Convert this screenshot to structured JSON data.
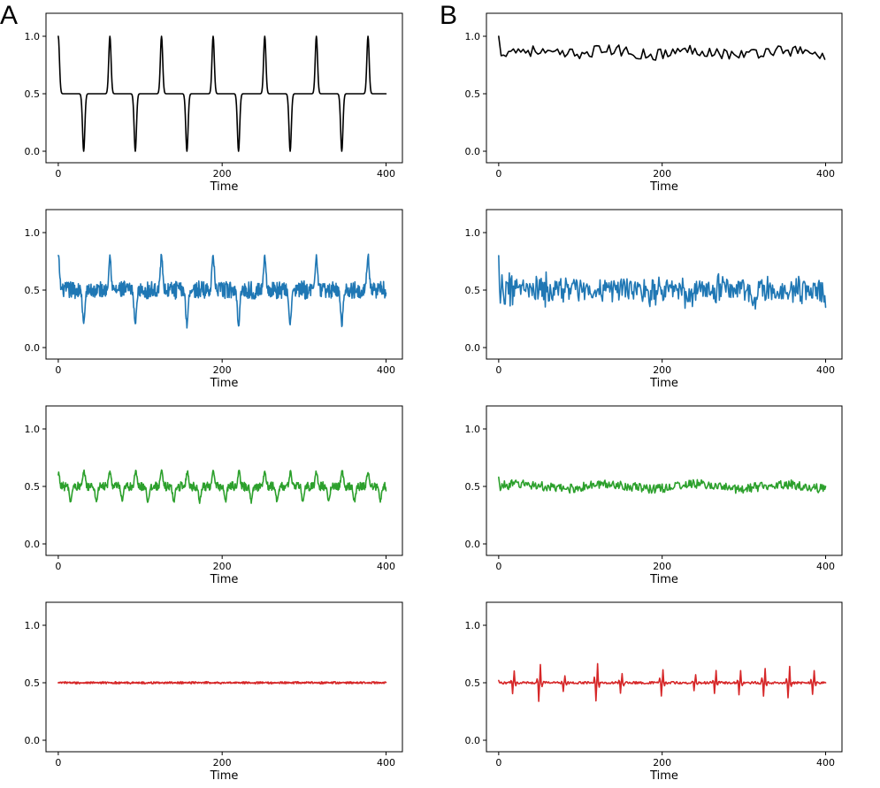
{
  "panels": [
    {
      "letter": "A"
    },
    {
      "letter": "B"
    }
  ],
  "chart_data": [
    {
      "type": "line",
      "panel": "A",
      "row": 1,
      "color": "#000000",
      "xlabel": "Time",
      "xlim": [
        -15,
        420
      ],
      "ylim": [
        -0.1,
        1.2
      ],
      "xticks": [
        0,
        200,
        400
      ],
      "yticks": [
        0.0,
        0.5,
        1.0
      ],
      "signal": "pulse",
      "n": 400,
      "period": 63,
      "spike_offset": 0,
      "spike_amplitude": 0.5,
      "trough_offset": 31,
      "trough_amplitude": 0.5,
      "baseline": 0.5,
      "noise": 0,
      "start_value": 1.0
    },
    {
      "type": "line",
      "panel": "A",
      "row": 2,
      "color": "#1f77b4",
      "xlabel": "Time",
      "xlim": [
        -15,
        420
      ],
      "ylim": [
        -0.1,
        1.2
      ],
      "xticks": [
        0,
        200,
        400
      ],
      "yticks": [
        0.0,
        0.5,
        1.0
      ],
      "signal": "pulse",
      "n": 400,
      "period": 63,
      "spike_offset": 0,
      "spike_amplitude": 0.3,
      "trough_offset": 31,
      "trough_amplitude": 0.3,
      "baseline": 0.5,
      "noise": 0.08,
      "start_value": 0.8
    },
    {
      "type": "line",
      "panel": "A",
      "row": 3,
      "color": "#2ca02c",
      "xlabel": "Time",
      "xlim": [
        -15,
        420
      ],
      "ylim": [
        -0.1,
        1.2
      ],
      "xticks": [
        0,
        200,
        400
      ],
      "yticks": [
        0.0,
        0.5,
        1.0
      ],
      "signal": "pulse",
      "n": 400,
      "period": 31.5,
      "spike_offset": 0,
      "spike_amplitude": 0.13,
      "trough_offset": 15,
      "trough_amplitude": 0.13,
      "baseline": 0.5,
      "noise": 0.04,
      "start_value": 0.6
    },
    {
      "type": "line",
      "panel": "A",
      "row": 4,
      "color": "#d62728",
      "xlabel": "Time",
      "xlim": [
        -15,
        420
      ],
      "ylim": [
        -0.1,
        1.2
      ],
      "xticks": [
        0,
        200,
        400
      ],
      "yticks": [
        0.0,
        0.5,
        1.0
      ],
      "signal": "pulse",
      "n": 400,
      "period": 31.5,
      "spike_offset": 16,
      "spike_amplitude": 0.18,
      "trough_offset": 16,
      "trough_amplitude": 0.18,
      "baseline": 0.5,
      "noise": 0.01,
      "start_value": 0.5
    },
    {
      "type": "line",
      "panel": "B",
      "row": 1,
      "color": "#000000",
      "xlabel": "Time",
      "xlim": [
        -15,
        420
      ],
      "ylim": [
        -0.1,
        1.2
      ],
      "xticks": [
        0,
        200,
        400
      ],
      "yticks": [
        0.0,
        0.5,
        1.0
      ],
      "signal": "noisy",
      "n": 400,
      "step": 3,
      "baseline": 0.86,
      "noise": 0.05,
      "start_value": 1.0,
      "end_value": 0.8
    },
    {
      "type": "line",
      "panel": "B",
      "row": 2,
      "color": "#1f77b4",
      "xlabel": "Time",
      "xlim": [
        -15,
        420
      ],
      "ylim": [
        -0.1,
        1.2
      ],
      "xticks": [
        0,
        200,
        400
      ],
      "yticks": [
        0.0,
        0.5,
        1.0
      ],
      "signal": "bursts",
      "n": 400,
      "step": 1,
      "baseline": 0.5,
      "noise": 0.07,
      "burst_period": 44,
      "burst_amplitude": 0.12,
      "start_value": 0.8,
      "end_value": 0.35
    },
    {
      "type": "line",
      "panel": "B",
      "row": 3,
      "color": "#2ca02c",
      "xlabel": "Time",
      "xlim": [
        -15,
        420
      ],
      "ylim": [
        -0.1,
        1.2
      ],
      "xticks": [
        0,
        200,
        400
      ],
      "yticks": [
        0.0,
        0.5,
        1.0
      ],
      "signal": "noisy",
      "n": 400,
      "step": 1,
      "baseline": 0.5,
      "noise": 0.04,
      "start_value": 0.58,
      "end_value": 0.5
    },
    {
      "type": "line",
      "panel": "B",
      "row": 4,
      "color": "#d62728",
      "xlabel": "Time",
      "xlim": [
        -15,
        420
      ],
      "ylim": [
        -0.1,
        1.2
      ],
      "xticks": [
        0,
        200,
        400
      ],
      "yticks": [
        0.0,
        0.5,
        1.0
      ],
      "signal": "spikes",
      "n": 400,
      "step": 1,
      "baseline": 0.5,
      "noise": 0.01,
      "spike_times": [
        18,
        50,
        80,
        120,
        150,
        200,
        240,
        265,
        295,
        325,
        355,
        385
      ],
      "spike_heights": [
        0.12,
        0.18,
        0.08,
        0.19,
        0.1,
        0.14,
        0.09,
        0.12,
        0.12,
        0.14,
        0.16,
        0.13
      ],
      "start_value": 0.52,
      "end_value": 0.5
    }
  ]
}
